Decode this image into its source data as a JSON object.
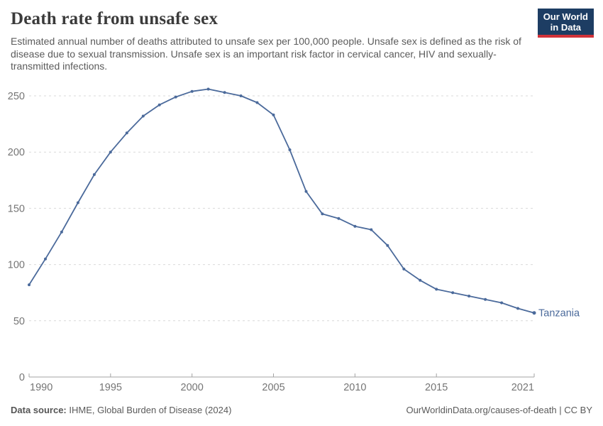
{
  "header": {
    "title": "Death rate from unsafe sex",
    "subtitle": "Estimated annual number of deaths attributed to unsafe sex per 100,000 people. Unsafe sex is defined as the risk of disease due to sexual transmission. Unsafe sex is an important risk factor in cervical cancer, HIV and sexually-transmitted infections.",
    "logo": {
      "line1": "Our World",
      "line2": "in Data",
      "bg_color": "#1d3d63",
      "accent_color": "#d13239"
    }
  },
  "chart_data": {
    "type": "line",
    "title": "Death rate from unsafe sex",
    "entity": "Tanzania",
    "x": [
      1990,
      1991,
      1992,
      1993,
      1994,
      1995,
      1996,
      1997,
      1998,
      1999,
      2000,
      2001,
      2002,
      2003,
      2004,
      2005,
      2006,
      2007,
      2008,
      2009,
      2010,
      2011,
      2012,
      2013,
      2014,
      2015,
      2016,
      2017,
      2018,
      2019,
      2020,
      2021
    ],
    "values": [
      82,
      105,
      129,
      155,
      180,
      200,
      217,
      232,
      242,
      249,
      254,
      256,
      253,
      250,
      244,
      233,
      202,
      165,
      145,
      141,
      134,
      131,
      117,
      96,
      86,
      78,
      75,
      72,
      69,
      66,
      61,
      57
    ],
    "xlabel": "",
    "ylabel": "",
    "ylim": [
      0,
      250
    ],
    "yticks": [
      0,
      50,
      100,
      150,
      200,
      250
    ],
    "xticks": [
      1990,
      1995,
      2000,
      2005,
      2010,
      2015,
      2021
    ],
    "grid": "horizontal-dashed",
    "legend_position": "end-of-line",
    "line_color": "#4b6a9b",
    "grid_color": "#d9d9d9",
    "axis_color": "#a3a3a3",
    "tick_label_color": "#757575"
  },
  "footer": {
    "source_label": "Data source:",
    "source_text": " IHME, Global Burden of Disease (2024)",
    "link_text": "OurWorldinData.org/causes-of-death | CC BY"
  }
}
